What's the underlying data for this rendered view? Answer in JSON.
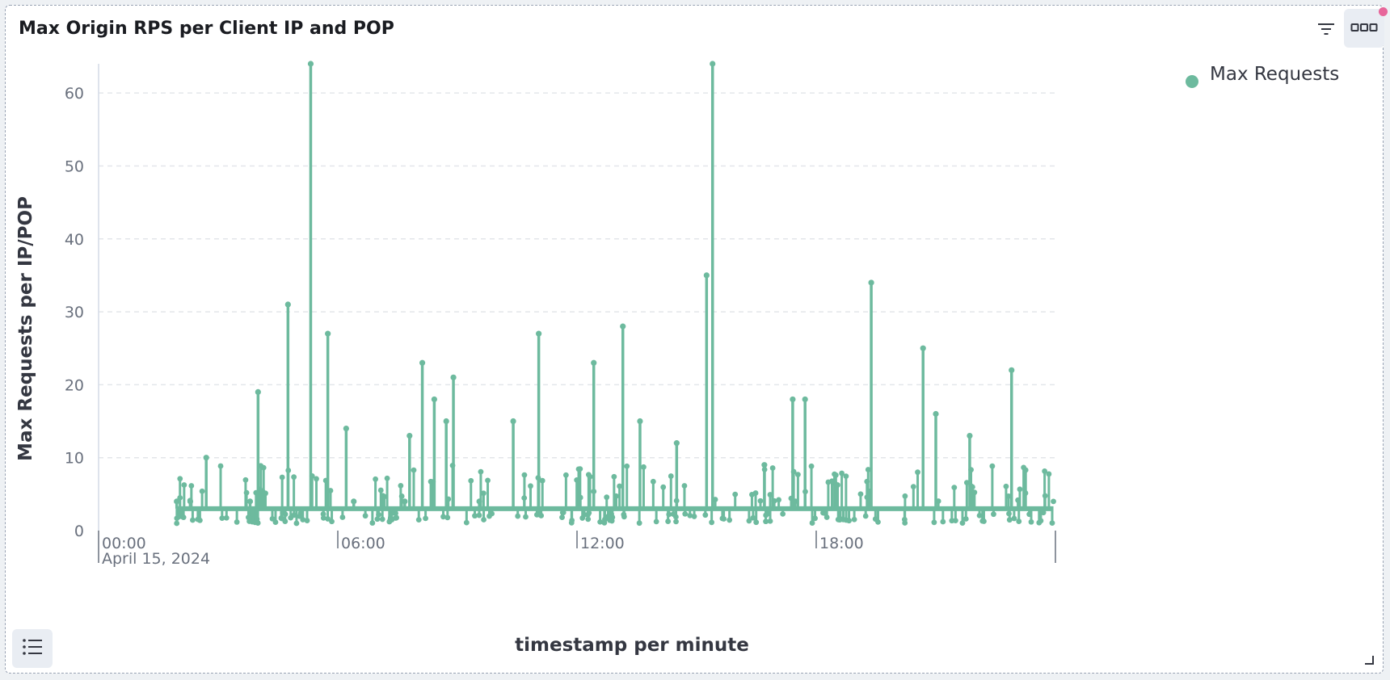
{
  "panel": {
    "title": "Max Origin RPS per Client IP and POP",
    "buttons": [
      "filter-icon",
      "more-icon",
      "list-icon",
      "resize-icon"
    ]
  },
  "colors": {
    "series": "#6dba9e",
    "grid": "#e3e6ea",
    "accent_dot": "#e7669a"
  },
  "chart_data": {
    "type": "line",
    "xlabel": "timestamp per minute",
    "ylabel": "Max Requests per IP/POP",
    "ylim": [
      0,
      64
    ],
    "yticks": [
      0,
      10,
      20,
      30,
      40,
      50,
      60
    ],
    "xlim": [
      0,
      24
    ],
    "xticks": [
      {
        "value": 0,
        "label": "00:00",
        "sublabel": "April 15, 2024"
      },
      {
        "value": 6,
        "label": "06:00",
        "sublabel": ""
      },
      {
        "value": 12,
        "label": "12:00",
        "sublabel": ""
      },
      {
        "value": 18,
        "label": "18:00",
        "sublabel": ""
      }
    ],
    "grid": "horizontal",
    "legend_position": "top-right",
    "baseline": 3,
    "series": [
      {
        "name": "Max Requests",
        "color": "#6dba9e",
        "x": [
          1.96,
          2.3,
          2.7,
          3.8,
          4.0,
          4.75,
          5.32,
          5.75,
          6.21,
          6.4,
          7.68,
          7.8,
          8.12,
          8.42,
          8.72,
          8.9,
          9.55,
          10.4,
          11.04,
          12.42,
          13.15,
          13.58,
          14.5,
          15.25,
          15.4,
          16.7,
          17.41,
          17.72,
          19.38,
          20.68,
          21.0,
          21.85,
          22.9
        ],
        "y": [
          4,
          4,
          10,
          4,
          19,
          31,
          64,
          27,
          14,
          4,
          4,
          13,
          23,
          18,
          15,
          21,
          4,
          15,
          27,
          23,
          28,
          15,
          12,
          35,
          64,
          9,
          18,
          18,
          34,
          25,
          16,
          13,
          22
        ]
      }
    ]
  }
}
